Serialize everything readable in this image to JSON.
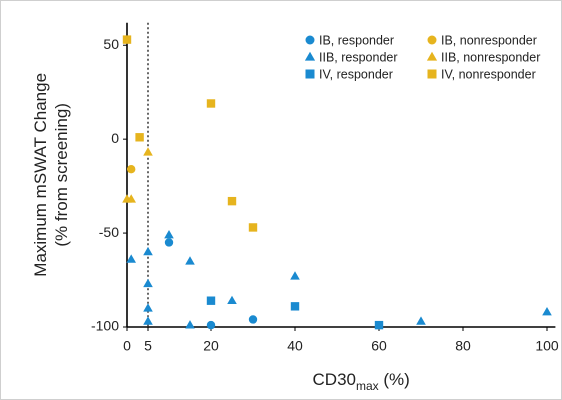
{
  "chart_data": {
    "type": "scatter",
    "ylabel": [
      "Maximum mSWAT Change",
      "(% from screening)"
    ],
    "xlabel": [
      "CD30",
      "max",
      " (%)"
    ],
    "xlim": [
      0,
      102
    ],
    "ylim": [
      -100,
      62
    ],
    "xticks": [
      0,
      5,
      20,
      40,
      60,
      80,
      100
    ],
    "yticks": [
      50,
      0,
      -50,
      -100
    ],
    "reference_x": 5,
    "legend": "upper right",
    "series": [
      {
        "name": "IB, responder",
        "color": "#1a8ad0",
        "marker": "circle",
        "x": [
          10,
          20,
          30
        ],
        "y": [
          -55,
          -99,
          -96
        ]
      },
      {
        "name": "IB, nonresponder",
        "color": "#e6b41e",
        "marker": "circle",
        "x": [
          1
        ],
        "y": [
          -16
        ]
      },
      {
        "name": "IIB, responder",
        "color": "#1a8ad0",
        "marker": "triangle",
        "x": [
          1,
          5,
          5,
          5,
          5,
          10,
          15,
          15,
          25,
          40,
          70,
          100
        ],
        "y": [
          -64,
          -60,
          -77,
          -90,
          -97,
          -51,
          -65,
          -99,
          -86,
          -73,
          -97,
          -92
        ]
      },
      {
        "name": "IIB, nonresponder",
        "color": "#e6b41e",
        "marker": "triangle",
        "x": [
          0,
          1,
          5
        ],
        "y": [
          -32,
          -32,
          -7
        ]
      },
      {
        "name": "IV, responder",
        "color": "#1a8ad0",
        "marker": "square",
        "x": [
          20,
          40,
          60
        ],
        "y": [
          -86,
          -89,
          -99
        ]
      },
      {
        "name": "IV, nonresponder",
        "color": "#e6b41e",
        "marker": "square",
        "x": [
          0,
          3,
          20,
          25,
          30
        ],
        "y": [
          53,
          1,
          19,
          -33,
          -47
        ]
      }
    ]
  }
}
